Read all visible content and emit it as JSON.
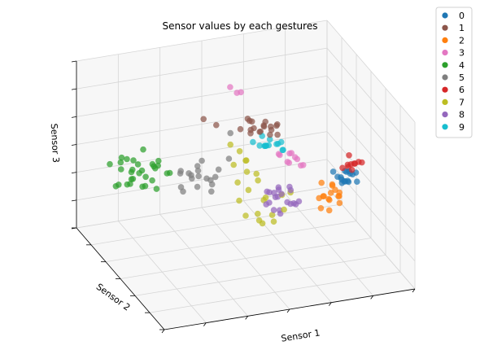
{
  "chart_data": {
    "type": "scatter",
    "projection": "3d",
    "title": "Sensor values by each gestures",
    "xlabel": "Sensor 1",
    "ylabel": "Sensor 2",
    "zlabel": "Sensor 3",
    "grid": true,
    "legend_position": "top-right",
    "series": [
      {
        "name": "0",
        "color": "#1f77b4",
        "points": [
          [
            0.88,
            0.5,
            0.12
          ],
          [
            0.9,
            0.48,
            0.1
          ],
          [
            0.92,
            0.52,
            0.14
          ],
          [
            0.87,
            0.46,
            0.11
          ],
          [
            0.91,
            0.54,
            0.13
          ],
          [
            0.89,
            0.49,
            0.09
          ],
          [
            0.93,
            0.51,
            0.12
          ],
          [
            0.86,
            0.53,
            0.15
          ],
          [
            0.9,
            0.47,
            0.1
          ],
          [
            0.92,
            0.55,
            0.11
          ],
          [
            0.88,
            0.45,
            0.13
          ],
          [
            0.94,
            0.5,
            0.14
          ],
          [
            0.89,
            0.52,
            0.08
          ],
          [
            0.91,
            0.48,
            0.16
          ],
          [
            0.87,
            0.51,
            0.12
          ],
          [
            0.93,
            0.46,
            0.1
          ]
        ]
      },
      {
        "name": "1",
        "color": "#8c564b",
        "points": [
          [
            0.55,
            0.55,
            0.62
          ],
          [
            0.58,
            0.52,
            0.65
          ],
          [
            0.6,
            0.58,
            0.6
          ],
          [
            0.52,
            0.5,
            0.66
          ],
          [
            0.62,
            0.55,
            0.58
          ],
          [
            0.56,
            0.6,
            0.63
          ],
          [
            0.59,
            0.48,
            0.61
          ],
          [
            0.54,
            0.57,
            0.67
          ],
          [
            0.63,
            0.52,
            0.64
          ],
          [
            0.57,
            0.54,
            0.59
          ],
          [
            0.61,
            0.59,
            0.62
          ],
          [
            0.53,
            0.53,
            0.6
          ],
          [
            0.6,
            0.5,
            0.66
          ],
          [
            0.58,
            0.56,
            0.57
          ],
          [
            0.55,
            0.62,
            0.64
          ],
          [
            0.64,
            0.54,
            0.63
          ],
          [
            0.5,
            0.56,
            0.62
          ],
          [
            0.62,
            0.48,
            0.6
          ],
          [
            0.4,
            0.55,
            0.7
          ],
          [
            0.36,
            0.58,
            0.74
          ]
        ]
      },
      {
        "name": "2",
        "color": "#ff7f0e",
        "points": [
          [
            0.84,
            0.5,
            0.0
          ],
          [
            0.82,
            0.46,
            -0.02
          ],
          [
            0.86,
            0.54,
            0.02
          ],
          [
            0.8,
            0.52,
            -0.05
          ],
          [
            0.85,
            0.48,
            0.04
          ],
          [
            0.83,
            0.56,
            -0.08
          ],
          [
            0.87,
            0.5,
            -0.04
          ],
          [
            0.81,
            0.44,
            0.01
          ],
          [
            0.84,
            0.58,
            -0.1
          ],
          [
            0.86,
            0.46,
            0.03
          ],
          [
            0.8,
            0.5,
            -0.12
          ],
          [
            0.88,
            0.52,
            -0.06
          ],
          [
            0.82,
            0.55,
            0.05
          ],
          [
            0.85,
            0.43,
            -0.03
          ],
          [
            0.83,
            0.49,
            -0.14
          ],
          [
            0.87,
            0.57,
            0.0
          ]
        ]
      },
      {
        "name": "3",
        "color": "#e377c2",
        "points": [
          [
            0.68,
            0.52,
            0.3
          ],
          [
            0.7,
            0.55,
            0.35
          ],
          [
            0.72,
            0.5,
            0.28
          ],
          [
            0.66,
            0.58,
            0.33
          ],
          [
            0.74,
            0.53,
            0.25
          ],
          [
            0.69,
            0.48,
            0.38
          ],
          [
            0.71,
            0.6,
            0.3
          ],
          [
            0.65,
            0.54,
            0.36
          ],
          [
            0.73,
            0.57,
            0.27
          ],
          [
            0.67,
            0.51,
            0.32
          ],
          [
            0.5,
            0.6,
            0.9
          ],
          [
            0.53,
            0.64,
            0.86
          ],
          [
            0.48,
            0.62,
            0.94
          ]
        ]
      },
      {
        "name": "4",
        "color": "#2ca02c",
        "points": [
          [
            0.02,
            0.55,
            0.45
          ],
          [
            0.05,
            0.5,
            0.4
          ],
          [
            0.08,
            0.58,
            0.48
          ],
          [
            0.0,
            0.52,
            0.35
          ],
          [
            0.1,
            0.54,
            0.42
          ],
          [
            0.04,
            0.6,
            0.5
          ],
          [
            0.12,
            0.48,
            0.38
          ],
          [
            0.06,
            0.56,
            0.3
          ],
          [
            0.14,
            0.52,
            0.46
          ],
          [
            0.03,
            0.46,
            0.44
          ],
          [
            0.09,
            0.62,
            0.36
          ],
          [
            0.16,
            0.56,
            0.4
          ],
          [
            0.07,
            0.5,
            0.52
          ],
          [
            0.01,
            0.58,
            0.28
          ],
          [
            0.11,
            0.6,
            0.34
          ],
          [
            0.15,
            0.5,
            0.48
          ],
          [
            0.05,
            0.64,
            0.42
          ],
          [
            0.13,
            0.46,
            0.32
          ],
          [
            0.18,
            0.58,
            0.44
          ],
          [
            0.02,
            0.48,
            0.38
          ],
          [
            0.08,
            0.44,
            0.46
          ],
          [
            0.17,
            0.62,
            0.38
          ],
          [
            0.1,
            0.66,
            0.3
          ],
          [
            0.04,
            0.54,
            0.54
          ],
          [
            0.2,
            0.54,
            0.36
          ],
          [
            0.06,
            0.42,
            0.4
          ],
          [
            0.14,
            0.64,
            0.5
          ],
          [
            0.12,
            0.56,
            0.26
          ],
          [
            0.0,
            0.62,
            0.44
          ],
          [
            0.19,
            0.48,
            0.42
          ]
        ]
      },
      {
        "name": "5",
        "color": "#7f7f7f",
        "points": [
          [
            0.3,
            0.55,
            0.3
          ],
          [
            0.34,
            0.58,
            0.25
          ],
          [
            0.28,
            0.52,
            0.35
          ],
          [
            0.36,
            0.5,
            0.28
          ],
          [
            0.32,
            0.6,
            0.22
          ],
          [
            0.26,
            0.56,
            0.32
          ],
          [
            0.38,
            0.54,
            0.2
          ],
          [
            0.3,
            0.48,
            0.26
          ],
          [
            0.35,
            0.62,
            0.3
          ],
          [
            0.27,
            0.58,
            0.18
          ],
          [
            0.4,
            0.56,
            0.24
          ],
          [
            0.33,
            0.46,
            0.34
          ],
          [
            0.29,
            0.64,
            0.26
          ],
          [
            0.37,
            0.52,
            0.16
          ],
          [
            0.31,
            0.5,
            0.38
          ],
          [
            0.42,
            0.58,
            0.28
          ],
          [
            0.25,
            0.5,
            0.22
          ],
          [
            0.36,
            0.6,
            0.36
          ],
          [
            0.44,
            0.52,
            0.42
          ],
          [
            0.46,
            0.56,
            0.6
          ]
        ]
      },
      {
        "name": "6",
        "color": "#d62728",
        "points": [
          [
            0.92,
            0.5,
            0.22
          ],
          [
            0.94,
            0.52,
            0.2
          ],
          [
            0.9,
            0.48,
            0.24
          ],
          [
            0.95,
            0.54,
            0.18
          ],
          [
            0.91,
            0.46,
            0.21
          ],
          [
            0.93,
            0.55,
            0.25
          ],
          [
            0.89,
            0.51,
            0.19
          ],
          [
            0.96,
            0.49,
            0.23
          ],
          [
            0.92,
            0.53,
            0.17
          ],
          [
            0.94,
            0.47,
            0.26
          ]
        ]
      },
      {
        "name": "7",
        "color": "#bcbd22",
        "points": [
          [
            0.5,
            0.5,
            0.4
          ],
          [
            0.52,
            0.55,
            0.35
          ],
          [
            0.48,
            0.58,
            0.3
          ],
          [
            0.55,
            0.52,
            0.25
          ],
          [
            0.54,
            0.6,
            0.2
          ],
          [
            0.57,
            0.56,
            0.15
          ],
          [
            0.51,
            0.62,
            0.1
          ],
          [
            0.58,
            0.5,
            0.05
          ],
          [
            0.56,
            0.64,
            0.0
          ],
          [
            0.6,
            0.58,
            -0.05
          ],
          [
            0.53,
            0.66,
            -0.1
          ],
          [
            0.62,
            0.54,
            -0.15
          ],
          [
            0.59,
            0.62,
            -0.2
          ],
          [
            0.64,
            0.58,
            -0.25
          ],
          [
            0.61,
            0.66,
            -0.3
          ],
          [
            0.66,
            0.52,
            -0.1
          ],
          [
            0.49,
            0.54,
            0.45
          ],
          [
            0.46,
            0.56,
            0.5
          ],
          [
            0.68,
            0.6,
            -0.05
          ],
          [
            0.63,
            0.68,
            -0.35
          ],
          [
            0.57,
            0.7,
            -0.28
          ],
          [
            0.7,
            0.56,
            0.0
          ]
        ]
      },
      {
        "name": "8",
        "color": "#9467bd",
        "points": [
          [
            0.64,
            0.56,
            -0.02
          ],
          [
            0.66,
            0.58,
            0.02
          ],
          [
            0.68,
            0.54,
            -0.06
          ],
          [
            0.62,
            0.6,
            0.0
          ],
          [
            0.7,
            0.56,
            -0.1
          ],
          [
            0.65,
            0.52,
            0.04
          ],
          [
            0.67,
            0.62,
            -0.08
          ],
          [
            0.63,
            0.55,
            -0.12
          ],
          [
            0.71,
            0.6,
            0.01
          ],
          [
            0.66,
            0.57,
            -0.15
          ],
          [
            0.69,
            0.53,
            0.05
          ],
          [
            0.64,
            0.63,
            -0.04
          ],
          [
            0.72,
            0.58,
            -0.12
          ],
          [
            0.61,
            0.58,
            -0.09
          ],
          [
            0.68,
            0.64,
            -0.02
          ],
          [
            0.7,
            0.5,
            -0.05
          ],
          [
            0.65,
            0.66,
            -0.16
          ],
          [
            0.73,
            0.55,
            -0.08
          ],
          [
            0.62,
            0.52,
            0.06
          ],
          [
            0.67,
            0.59,
            -0.2
          ]
        ]
      },
      {
        "name": "9",
        "color": "#17becf",
        "points": [
          [
            0.6,
            0.55,
            0.45
          ],
          [
            0.63,
            0.52,
            0.48
          ],
          [
            0.62,
            0.58,
            0.42
          ],
          [
            0.58,
            0.5,
            0.5
          ],
          [
            0.65,
            0.56,
            0.44
          ],
          [
            0.61,
            0.6,
            0.4
          ],
          [
            0.64,
            0.48,
            0.46
          ],
          [
            0.59,
            0.57,
            0.52
          ],
          [
            0.66,
            0.53,
            0.41
          ],
          [
            0.57,
            0.54,
            0.47
          ],
          [
            0.62,
            0.62,
            0.38
          ],
          [
            0.6,
            0.51,
            0.54
          ],
          [
            0.67,
            0.58,
            0.43
          ],
          [
            0.55,
            0.56,
            0.49
          ]
        ]
      }
    ]
  }
}
